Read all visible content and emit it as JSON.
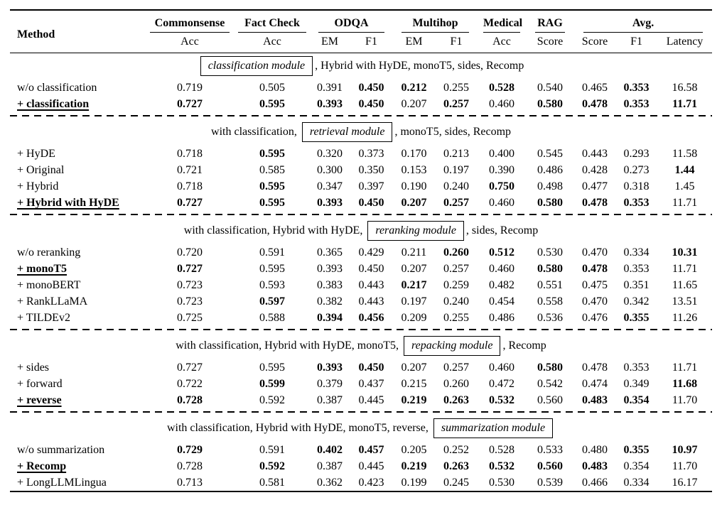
{
  "colors": {
    "text": "#000000",
    "background": "#ffffff",
    "rule": "#000000"
  },
  "table": {
    "header": {
      "method_label": "Method",
      "groups": [
        {
          "label": "Commonsense",
          "subs": [
            "Acc"
          ]
        },
        {
          "label": "Fact Check",
          "subs": [
            "Acc"
          ]
        },
        {
          "label": "ODQA",
          "subs": [
            "EM",
            "F1"
          ]
        },
        {
          "label": "Multihop",
          "subs": [
            "EM",
            "F1"
          ]
        },
        {
          "label": "Medical",
          "subs": [
            "Acc"
          ]
        },
        {
          "label": "RAG",
          "subs": [
            "Score"
          ]
        },
        {
          "label": "Avg.",
          "subs": [
            "Score",
            "F1",
            "Latency"
          ]
        }
      ]
    },
    "sections": [
      {
        "pre": "",
        "module": "classification module",
        "post": ", Hybrid with HyDE, monoT5, sides, Recomp",
        "rows": [
          {
            "method": "w/o classification",
            "selected": false,
            "values": [
              "0.719",
              "0.505",
              "0.391",
              "0.450",
              "0.212",
              "0.255",
              "0.528",
              "0.540",
              "0.465",
              "0.353",
              "16.58"
            ],
            "bold": [
              false,
              false,
              false,
              true,
              true,
              false,
              true,
              false,
              false,
              true,
              false
            ]
          },
          {
            "method": "+ classification",
            "selected": true,
            "values": [
              "0.727",
              "0.595",
              "0.393",
              "0.450",
              "0.207",
              "0.257",
              "0.460",
              "0.580",
              "0.478",
              "0.353",
              "11.71"
            ],
            "bold": [
              true,
              true,
              true,
              true,
              false,
              true,
              false,
              true,
              true,
              true,
              true
            ]
          }
        ]
      },
      {
        "pre": "with classification, ",
        "module": "retrieval module",
        "post": ", monoT5, sides, Recomp",
        "rows": [
          {
            "method": "+ HyDE",
            "selected": false,
            "values": [
              "0.718",
              "0.595",
              "0.320",
              "0.373",
              "0.170",
              "0.213",
              "0.400",
              "0.545",
              "0.443",
              "0.293",
              "11.58"
            ],
            "bold": [
              false,
              true,
              false,
              false,
              false,
              false,
              false,
              false,
              false,
              false,
              false
            ]
          },
          {
            "method": "+ Original",
            "selected": false,
            "values": [
              "0.721",
              "0.585",
              "0.300",
              "0.350",
              "0.153",
              "0.197",
              "0.390",
              "0.486",
              "0.428",
              "0.273",
              "1.44"
            ],
            "bold": [
              false,
              false,
              false,
              false,
              false,
              false,
              false,
              false,
              false,
              false,
              true
            ]
          },
          {
            "method": "+ Hybrid",
            "selected": false,
            "values": [
              "0.718",
              "0.595",
              "0.347",
              "0.397",
              "0.190",
              "0.240",
              "0.750",
              "0.498",
              "0.477",
              "0.318",
              "1.45"
            ],
            "bold": [
              false,
              true,
              false,
              false,
              false,
              false,
              true,
              false,
              false,
              false,
              false
            ]
          },
          {
            "method": "+ Hybrid with HyDE",
            "selected": true,
            "values": [
              "0.727",
              "0.595",
              "0.393",
              "0.450",
              "0.207",
              "0.257",
              "0.460",
              "0.580",
              "0.478",
              "0.353",
              "11.71"
            ],
            "bold": [
              true,
              true,
              true,
              true,
              true,
              true,
              false,
              true,
              true,
              true,
              false
            ]
          }
        ]
      },
      {
        "pre": "with classification, Hybrid with HyDE, ",
        "module": "reranking module",
        "post": ", sides, Recomp",
        "rows": [
          {
            "method": "w/o reranking",
            "selected": false,
            "values": [
              "0.720",
              "0.591",
              "0.365",
              "0.429",
              "0.211",
              "0.260",
              "0.512",
              "0.530",
              "0.470",
              "0.334",
              "10.31"
            ],
            "bold": [
              false,
              false,
              false,
              false,
              false,
              true,
              true,
              false,
              false,
              false,
              true
            ]
          },
          {
            "method": "+ monoT5",
            "selected": true,
            "values": [
              "0.727",
              "0.595",
              "0.393",
              "0.450",
              "0.207",
              "0.257",
              "0.460",
              "0.580",
              "0.478",
              "0.353",
              "11.71"
            ],
            "bold": [
              true,
              false,
              false,
              false,
              false,
              false,
              false,
              true,
              true,
              false,
              false
            ]
          },
          {
            "method": "+ monoBERT",
            "selected": false,
            "values": [
              "0.723",
              "0.593",
              "0.383",
              "0.443",
              "0.217",
              "0.259",
              "0.482",
              "0.551",
              "0.475",
              "0.351",
              "11.65"
            ],
            "bold": [
              false,
              false,
              false,
              false,
              true,
              false,
              false,
              false,
              false,
              false,
              false
            ]
          },
          {
            "method": "+ RankLLaMA",
            "selected": false,
            "values": [
              "0.723",
              "0.597",
              "0.382",
              "0.443",
              "0.197",
              "0.240",
              "0.454",
              "0.558",
              "0.470",
              "0.342",
              "13.51"
            ],
            "bold": [
              false,
              true,
              false,
              false,
              false,
              false,
              false,
              false,
              false,
              false,
              false
            ]
          },
          {
            "method": "+ TILDEv2",
            "selected": false,
            "values": [
              "0.725",
              "0.588",
              "0.394",
              "0.456",
              "0.209",
              "0.255",
              "0.486",
              "0.536",
              "0.476",
              "0.355",
              "11.26"
            ],
            "bold": [
              false,
              false,
              true,
              true,
              false,
              false,
              false,
              false,
              false,
              true,
              false
            ]
          }
        ]
      },
      {
        "pre": "with classification, Hybrid with HyDE, monoT5, ",
        "module": "repacking module",
        "post": ", Recomp",
        "rows": [
          {
            "method": "+ sides",
            "selected": false,
            "values": [
              "0.727",
              "0.595",
              "0.393",
              "0.450",
              "0.207",
              "0.257",
              "0.460",
              "0.580",
              "0.478",
              "0.353",
              "11.71"
            ],
            "bold": [
              false,
              false,
              true,
              true,
              false,
              false,
              false,
              true,
              false,
              false,
              false
            ]
          },
          {
            "method": "+ forward",
            "selected": false,
            "values": [
              "0.722",
              "0.599",
              "0.379",
              "0.437",
              "0.215",
              "0.260",
              "0.472",
              "0.542",
              "0.474",
              "0.349",
              "11.68"
            ],
            "bold": [
              false,
              true,
              false,
              false,
              false,
              false,
              false,
              false,
              false,
              false,
              true
            ]
          },
          {
            "method": "+ reverse",
            "selected": true,
            "values": [
              "0.728",
              "0.592",
              "0.387",
              "0.445",
              "0.219",
              "0.263",
              "0.532",
              "0.560",
              "0.483",
              "0.354",
              "11.70"
            ],
            "bold": [
              true,
              false,
              false,
              false,
              true,
              true,
              true,
              false,
              true,
              true,
              false
            ]
          }
        ]
      },
      {
        "pre": "with classification, Hybrid with HyDE, monoT5, reverse, ",
        "module": "summarization module",
        "post": "",
        "rows": [
          {
            "method": "w/o summarization",
            "selected": false,
            "values": [
              "0.729",
              "0.591",
              "0.402",
              "0.457",
              "0.205",
              "0.252",
              "0.528",
              "0.533",
              "0.480",
              "0.355",
              "10.97"
            ],
            "bold": [
              true,
              false,
              true,
              true,
              false,
              false,
              false,
              false,
              false,
              true,
              true
            ]
          },
          {
            "method": "+ Recomp",
            "selected": true,
            "values": [
              "0.728",
              "0.592",
              "0.387",
              "0.445",
              "0.219",
              "0.263",
              "0.532",
              "0.560",
              "0.483",
              "0.354",
              "11.70"
            ],
            "bold": [
              false,
              true,
              false,
              false,
              true,
              true,
              true,
              true,
              true,
              false,
              false
            ]
          },
          {
            "method": "+ LongLLMLingua",
            "selected": false,
            "values": [
              "0.713",
              "0.581",
              "0.362",
              "0.423",
              "0.199",
              "0.245",
              "0.530",
              "0.539",
              "0.466",
              "0.334",
              "16.17"
            ],
            "bold": [
              false,
              false,
              false,
              false,
              false,
              false,
              false,
              false,
              false,
              false,
              false
            ]
          }
        ]
      }
    ]
  }
}
